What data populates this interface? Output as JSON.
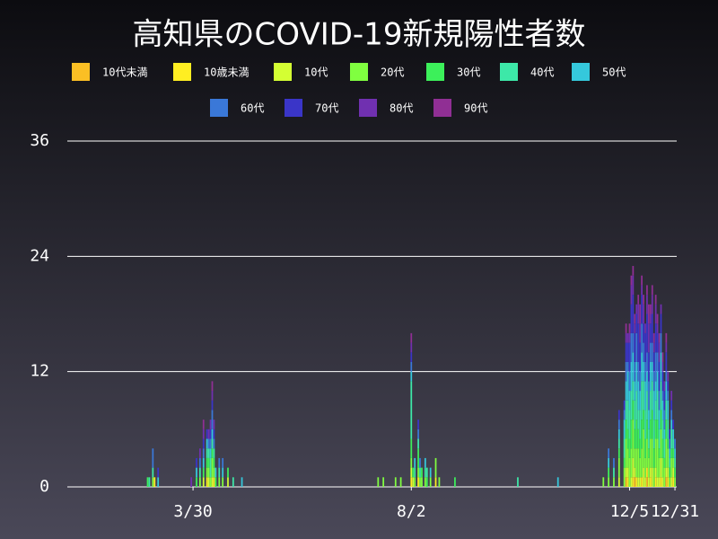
{
  "chart_data": {
    "type": "stacked-bar",
    "title": "高知県のCOVID-19新規陽性者数",
    "x": [
      64,
      65,
      67,
      68,
      70,
      89,
      92,
      94,
      96,
      98,
      99,
      100,
      101,
      102,
      103,
      105,
      107,
      110,
      113,
      118,
      196,
      199,
      206,
      209,
      215,
      216,
      217,
      219,
      220,
      221,
      223,
      224,
      226,
      229,
      231,
      240,
      276,
      299,
      325,
      328,
      331,
      334,
      337,
      338,
      339,
      340,
      341,
      342,
      343,
      344,
      345,
      346,
      347,
      348,
      349,
      350,
      351,
      352,
      353,
      354,
      355,
      356,
      357,
      358,
      359,
      360,
      361,
      362,
      363,
      364,
      365,
      366
    ],
    "xlim": [
      18,
      367
    ],
    "xticks": [
      {
        "value": 90,
        "label": "3/30"
      },
      {
        "value": 215,
        "label": "8/2"
      },
      {
        "value": 340,
        "label": "12/5"
      },
      {
        "value": 366,
        "label": "12/31"
      }
    ],
    "ylim": [
      0,
      36
    ],
    "yticks": [
      0,
      12,
      24,
      36
    ],
    "grid": true,
    "series": [
      {
        "name": "10代未満",
        "color": "#fbbf24",
        "values": [
          0,
          0,
          0,
          0,
          0,
          0,
          0,
          0,
          0,
          0,
          0,
          0,
          0,
          0,
          0,
          0,
          0,
          0,
          0,
          0,
          0,
          0,
          0,
          0,
          0,
          0,
          0,
          0,
          0,
          0,
          0,
          0,
          0,
          0,
          0,
          0,
          0,
          0,
          0,
          0,
          0,
          0,
          0,
          1,
          0,
          0,
          0,
          0,
          1,
          0,
          0,
          0,
          0,
          0,
          0,
          1,
          0,
          0,
          0,
          0,
          0,
          0,
          0,
          0,
          0,
          0,
          1,
          0,
          0,
          0,
          0,
          0
        ]
      },
      {
        "name": "10歳未満",
        "color": "#ffee22",
        "values": [
          0,
          0,
          0,
          1,
          0,
          0,
          0,
          0,
          0,
          1,
          0,
          0,
          0,
          1,
          0,
          0,
          0,
          0,
          0,
          0,
          0,
          0,
          0,
          0,
          1,
          0,
          0,
          1,
          0,
          0,
          0,
          0,
          0,
          1,
          0,
          0,
          0,
          0,
          0,
          0,
          0,
          0,
          0,
          0,
          1,
          0,
          0,
          1,
          0,
          1,
          0,
          0,
          1,
          0,
          0,
          1,
          0,
          1,
          0,
          0,
          1,
          0,
          0,
          1,
          0,
          0,
          0,
          1,
          0,
          0,
          1,
          0
        ]
      },
      {
        "name": "10代",
        "color": "#d4ff33",
        "values": [
          0,
          0,
          0,
          0,
          0,
          0,
          0,
          0,
          1,
          0,
          1,
          0,
          1,
          0,
          0,
          0,
          0,
          1,
          0,
          0,
          0,
          0,
          0,
          0,
          1,
          1,
          0,
          0,
          0,
          0,
          0,
          0,
          0,
          0,
          0,
          0,
          0,
          0,
          0,
          0,
          0,
          1,
          0,
          1,
          1,
          0,
          1,
          2,
          1,
          0,
          1,
          1,
          0,
          2,
          1,
          0,
          1,
          1,
          2,
          0,
          1,
          1,
          1,
          2,
          1,
          0,
          1,
          1,
          0,
          1,
          1,
          0
        ]
      },
      {
        "name": "20代",
        "color": "#80ff40",
        "values": [
          0,
          0,
          1,
          0,
          0,
          0,
          0,
          1,
          0,
          1,
          1,
          1,
          2,
          1,
          0,
          1,
          1,
          0,
          0,
          0,
          1,
          1,
          1,
          1,
          1,
          0,
          1,
          1,
          1,
          1,
          1,
          0,
          1,
          2,
          1,
          0,
          0,
          0,
          1,
          1,
          1,
          2,
          2,
          3,
          2,
          3,
          3,
          4,
          2,
          3,
          3,
          2,
          3,
          4,
          2,
          3,
          2,
          3,
          3,
          2,
          3,
          4,
          2,
          3,
          2,
          2,
          3,
          2,
          1,
          2,
          1,
          1
        ]
      },
      {
        "name": "30代",
        "color": "#3cf05a",
        "values": [
          1,
          0,
          0,
          0,
          0,
          0,
          1,
          0,
          1,
          1,
          1,
          0,
          1,
          1,
          1,
          0,
          0,
          1,
          0,
          0,
          0,
          0,
          0,
          0,
          2,
          1,
          0,
          2,
          0,
          1,
          0,
          1,
          0,
          0,
          0,
          1,
          0,
          0,
          0,
          1,
          0,
          1,
          1,
          2,
          2,
          2,
          3,
          2,
          2,
          3,
          2,
          2,
          3,
          2,
          2,
          2,
          1,
          2,
          3,
          2,
          2,
          2,
          1,
          2,
          2,
          1,
          2,
          1,
          1,
          1,
          1,
          1
        ]
      },
      {
        "name": "40代",
        "color": "#3de8a8",
        "values": [
          0,
          1,
          1,
          0,
          0,
          0,
          0,
          1,
          0,
          1,
          1,
          2,
          1,
          1,
          0,
          1,
          0,
          0,
          1,
          0,
          0,
          0,
          0,
          0,
          6,
          0,
          1,
          1,
          1,
          0,
          1,
          1,
          0,
          0,
          0,
          0,
          1,
          0,
          0,
          0,
          1,
          1,
          2,
          2,
          3,
          3,
          3,
          2,
          3,
          3,
          2,
          3,
          4,
          3,
          3,
          3,
          2,
          3,
          3,
          3,
          2,
          3,
          2,
          3,
          2,
          2,
          2,
          2,
          1,
          2,
          1,
          1
        ]
      },
      {
        "name": "50代",
        "color": "#35c8dc",
        "values": [
          0,
          0,
          0,
          0,
          1,
          0,
          1,
          0,
          1,
          1,
          0,
          1,
          1,
          0,
          1,
          0,
          1,
          0,
          0,
          1,
          0,
          0,
          0,
          0,
          1,
          0,
          1,
          0,
          0,
          0,
          1,
          0,
          1,
          0,
          0,
          0,
          0,
          1,
          0,
          1,
          0,
          1,
          2,
          2,
          3,
          2,
          3,
          3,
          2,
          3,
          3,
          2,
          3,
          2,
          3,
          2,
          2,
          3,
          2,
          3,
          2,
          2,
          2,
          3,
          2,
          1,
          2,
          2,
          1,
          1,
          1,
          1
        ]
      },
      {
        "name": "60代",
        "color": "#3a78d8",
        "values": [
          0,
          0,
          2,
          0,
          0,
          0,
          0,
          1,
          1,
          0,
          1,
          1,
          2,
          1,
          0,
          1,
          1,
          0,
          0,
          0,
          0,
          0,
          0,
          0,
          1,
          0,
          0,
          1,
          1,
          0,
          0,
          0,
          0,
          0,
          0,
          0,
          0,
          0,
          0,
          1,
          1,
          1,
          1,
          2,
          1,
          2,
          3,
          2,
          2,
          3,
          2,
          2,
          3,
          2,
          2,
          2,
          3,
          2,
          2,
          2,
          3,
          2,
          2,
          2,
          1,
          2,
          1,
          1,
          1,
          1,
          0,
          1
        ]
      },
      {
        "name": "70代",
        "color": "#3a35c8",
        "values": [
          0,
          0,
          0,
          0,
          1,
          0,
          1,
          0,
          1,
          1,
          0,
          1,
          1,
          1,
          0,
          0,
          0,
          0,
          0,
          0,
          0,
          0,
          0,
          0,
          1,
          0,
          0,
          1,
          0,
          0,
          0,
          0,
          0,
          0,
          0,
          0,
          0,
          0,
          0,
          0,
          0,
          1,
          1,
          2,
          2,
          3,
          3,
          4,
          3,
          2,
          4,
          3,
          3,
          2,
          3,
          4,
          3,
          2,
          3,
          2,
          3,
          2,
          3,
          2,
          2,
          2,
          2,
          1,
          1,
          1,
          1,
          0
        ]
      },
      {
        "name": "80代",
        "color": "#7030b0",
        "values": [
          0,
          0,
          0,
          0,
          0,
          1,
          0,
          1,
          1,
          0,
          1,
          1,
          1,
          1,
          0,
          0,
          0,
          0,
          0,
          0,
          0,
          0,
          0,
          0,
          1,
          0,
          0,
          0,
          0,
          0,
          0,
          0,
          0,
          0,
          0,
          0,
          0,
          0,
          0,
          0,
          0,
          0,
          0,
          1,
          1,
          1,
          2,
          2,
          1,
          1,
          2,
          2,
          1,
          2,
          1,
          2,
          3,
          1,
          2,
          1,
          2,
          1,
          2,
          1,
          1,
          1,
          1,
          1,
          0,
          1,
          0,
          0
        ]
      },
      {
        "name": "90代",
        "color": "#902f94",
        "values": [
          0,
          0,
          0,
          0,
          0,
          0,
          0,
          0,
          1,
          0,
          0,
          0,
          1,
          0,
          0,
          0,
          0,
          0,
          0,
          0,
          0,
          0,
          0,
          0,
          1,
          0,
          0,
          0,
          0,
          0,
          0,
          0,
          0,
          0,
          0,
          0,
          0,
          0,
          0,
          0,
          0,
          0,
          0,
          1,
          0,
          1,
          1,
          1,
          1,
          0,
          1,
          2,
          1,
          1,
          0,
          1,
          2,
          1,
          1,
          1,
          1,
          1,
          1,
          0,
          1,
          0,
          1,
          0,
          0,
          0,
          0,
          0
        ]
      }
    ]
  }
}
